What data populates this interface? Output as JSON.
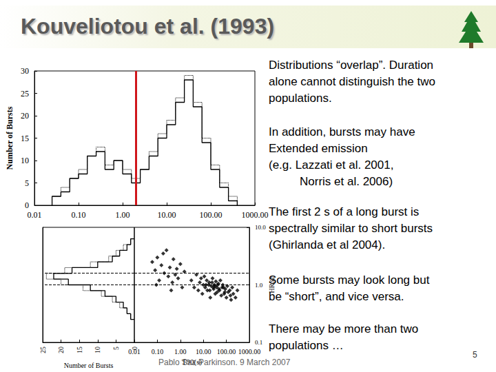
{
  "title": "Kouveliotou et al. (1993)",
  "bullets": [
    [
      "Distributions “overlap”. Duration",
      "alone cannot distinguish the two",
      "populations."
    ],
    [
      "In addition, bursts may have",
      "Extended emission",
      "(e.g. Lazzati et al. 2001,",
      "Norris et al. 2006)"
    ],
    [
      "The first 2 s of a long burst is",
      "spectrally similar to short bursts",
      "(Ghirlanda et al 2004)."
    ],
    [
      "Some bursts may look long but",
      "be “short”, and vice versa."
    ],
    [
      "There may be more than two",
      "populations …"
    ]
  ],
  "footer": "Pablo Saz Parkinson. 9 March 2007",
  "page_number": 5,
  "chart_data": [
    {
      "type": "histogram",
      "ylabel": "Number of Bursts",
      "log": "x",
      "bins": [
        0.0251,
        0.0398,
        0.0631,
        0.1,
        0.158,
        0.251,
        0.398,
        0.631,
        1,
        1.585,
        2.512,
        3.981,
        6.31,
        10,
        15.85,
        25.12,
        39.81,
        63.1,
        100,
        158.5,
        251.2,
        398.1
      ],
      "series": [
        {
          "color": "#000000",
          "line_style": "solid",
          "values": [
            2,
            3,
            6,
            7,
            11,
            12,
            8,
            10,
            7,
            5,
            8,
            11,
            15,
            18,
            23,
            28,
            22,
            14,
            8,
            4,
            1
          ]
        },
        {
          "color": "#000000",
          "line_style": "dotted",
          "values": [
            2,
            4,
            6,
            8,
            11,
            13,
            9,
            10,
            8,
            6,
            8,
            12,
            16,
            19,
            24,
            29,
            23,
            15,
            9,
            5,
            2
          ]
        }
      ],
      "xlim": [
        0.01,
        1000
      ],
      "xticks": [
        {
          "value": 0.01,
          "label": "0.01"
        },
        {
          "value": 0.1,
          "label": "0.10"
        },
        {
          "value": 1,
          "label": "1.00"
        },
        {
          "value": 10,
          "label": "10.00"
        },
        {
          "value": 100,
          "label": "100.00"
        },
        {
          "value": 1000,
          "label": "1000.00"
        }
      ],
      "ylim": [
        0,
        30
      ],
      "yticks": [
        0,
        5,
        10,
        15,
        20,
        25,
        30
      ],
      "vlines": [
        {
          "x": 2,
          "color": "#d0161b"
        }
      ]
    },
    {
      "type": "histogram",
      "orientation": "horizontal",
      "xlabel": "Number of Bursts",
      "log": "y",
      "tick_labels": "x",
      "bins": [
        0.251,
        0.316,
        0.398,
        0.501,
        0.631,
        0.794,
        1,
        1.259,
        1.585,
        1.995,
        2.512,
        3.162,
        3.981,
        5.012,
        6.31
      ],
      "series": [
        {
          "color": "#000000",
          "line_style": "solid",
          "values": [
            1,
            2,
            3,
            5,
            8,
            12,
            18,
            22,
            17,
            10,
            6,
            4,
            2,
            1
          ]
        },
        {
          "color": "#000000",
          "line_style": "dotted",
          "values": [
            1,
            2,
            4,
            6,
            9,
            14,
            20,
            24,
            19,
            12,
            7,
            5,
            3,
            1
          ]
        }
      ],
      "xlim": [
        25,
        0
      ],
      "xticks": [
        25,
        20,
        15,
        10,
        5,
        0
      ],
      "ylim": [
        0.1,
        10
      ],
      "hlines": [
        1.6,
        1.0
      ]
    },
    {
      "type": "scatter",
      "xlabel": "T90(s)",
      "ylabel": "HR32",
      "log": true,
      "color": "#000000",
      "marker": "diamond",
      "x": [
        0.06,
        0.08,
        0.1,
        0.12,
        0.15,
        0.2,
        0.25,
        0.3,
        0.35,
        0.45,
        0.5,
        0.6,
        0.8,
        1.0,
        1.2,
        1.5,
        0.09,
        0.18,
        0.4,
        0.7,
        3,
        4,
        5,
        6,
        7,
        8,
        9,
        10,
        11,
        12,
        14,
        15,
        17,
        18,
        20,
        22,
        25,
        28,
        30,
        33,
        35,
        38,
        40,
        45,
        50,
        55,
        60,
        65,
        70,
        80,
        90,
        100,
        110,
        120,
        140,
        160,
        180,
        200,
        250,
        300,
        13,
        19,
        24,
        27,
        32,
        42,
        48,
        75,
        85,
        150
      ],
      "y": [
        2.5,
        1.8,
        3.0,
        1.2,
        2.2,
        1.6,
        4.0,
        1.4,
        2.0,
        1.1,
        2.8,
        1.5,
        1.3,
        2.3,
        0.9,
        1.7,
        1.0,
        3.5,
        0.8,
        1.9,
        1.2,
        0.9,
        1.5,
        0.8,
        1.1,
        1.3,
        0.7,
        1.0,
        1.4,
        0.9,
        1.2,
        0.8,
        1.0,
        1.1,
        0.6,
        0.95,
        1.3,
        0.85,
        1.0,
        0.7,
        1.15,
        0.9,
        0.75,
        1.05,
        0.8,
        1.2,
        0.65,
        0.9,
        1.0,
        0.7,
        0.85,
        0.6,
        0.95,
        0.75,
        0.8,
        0.55,
        0.9,
        0.7,
        0.6,
        0.8,
        1.0,
        0.8,
        1.1,
        0.9,
        0.95,
        1.0,
        0.85,
        0.9,
        0.75,
        0.65
      ],
      "xlim": [
        0.01,
        1000
      ],
      "xticks": [
        {
          "value": 0.01,
          "label": "0.01"
        },
        {
          "value": 0.1,
          "label": "0.10"
        },
        {
          "value": 1,
          "label": "1.00"
        },
        {
          "value": 10,
          "label": "10.00"
        },
        {
          "value": 100,
          "label": "100.00"
        },
        {
          "value": 1000,
          "label": "1000.00"
        }
      ],
      "ylim": [
        0.1,
        10
      ],
      "yticks": [
        0.1,
        {
          "value": 1,
          "label": "1.0"
        },
        {
          "value": 10,
          "label": "10.0"
        }
      ],
      "hlines": [
        1.6,
        1.0
      ]
    }
  ]
}
